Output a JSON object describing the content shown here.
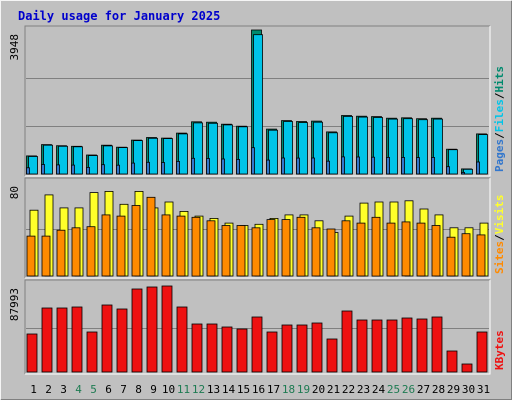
{
  "chart_data": {
    "title": "Daily usage for January 2025",
    "type": "bar",
    "x": [
      "1",
      "2",
      "3",
      "4",
      "5",
      "6",
      "7",
      "8",
      "9",
      "10",
      "11",
      "12",
      "13",
      "14",
      "15",
      "16",
      "17",
      "18",
      "19",
      "20",
      "21",
      "22",
      "23",
      "24",
      "25",
      "26",
      "27",
      "28",
      "29",
      "30",
      "31"
    ],
    "weekend_days": [
      "4",
      "5",
      "11",
      "12",
      "18",
      "19",
      "25",
      "26"
    ],
    "colors": {
      "background": "#c0c0c0",
      "frame": "#ececec",
      "title": "#0000cc",
      "pages": "#3377cc",
      "files": "#00c4e8",
      "hits": "#008a6e",
      "sites": "#ff8a00",
      "visits": "#ffff2a",
      "kbytes": "#ee1111",
      "weekend_label": "#1e7b52",
      "weekday_label": "#000000"
    },
    "panels": [
      {
        "id": "hits-panel",
        "ymax_label": "3948",
        "ylim": [
          0,
          3948
        ],
        "legend": [
          "Pages",
          "Files",
          "Hits"
        ],
        "series": [
          {
            "name": "Hits",
            "values": [
              495,
              805,
              775,
              760,
              520,
              790,
              735,
              930,
              1000,
              985,
              1120,
              1430,
              1420,
              1365,
              1310,
              3948,
              1230,
              1465,
              1440,
              1450,
              1155,
              1605,
              1585,
              1575,
              1530,
              1540,
              1515,
              1530,
              680,
              140,
              1100
            ]
          },
          {
            "name": "Files",
            "values": [
              480,
              790,
              760,
              745,
              505,
              770,
              725,
              915,
              980,
              970,
              1100,
              1400,
              1390,
              1345,
              1295,
              3820,
              1200,
              1440,
              1410,
              1420,
              1130,
              1580,
              1560,
              1550,
              1505,
              1515,
              1490,
              1505,
              665,
              130,
              1080
            ]
          },
          {
            "name": "Pages",
            "values": [
              170,
              260,
              250,
              245,
              180,
              255,
              240,
              300,
              320,
              315,
              345,
              430,
              425,
              410,
              400,
              720,
              380,
              440,
              435,
              440,
              350,
              470,
              465,
              460,
              455,
              455,
              450,
              455,
              200,
              45,
              330
            ]
          }
        ]
      },
      {
        "id": "visits-panel",
        "ymax_label": "80",
        "ylim": [
          0,
          80
        ],
        "legend": [
          "Sites",
          "Visits"
        ],
        "series": [
          {
            "name": "Visits",
            "values": [
              56,
              69,
              58,
              58,
              71,
              72,
              61,
              72,
              58,
              63,
              55,
              51,
              49,
              45,
              43,
              44,
              49,
              52,
              52,
              47,
              37,
              51,
              62,
              63,
              63,
              64,
              57,
              52,
              41,
              41,
              45
            ]
          },
          {
            "name": "Sites",
            "values": [
              34,
              34,
              39,
              41,
              42,
              52,
              51,
              60,
              67,
              52,
              51,
              50,
              47,
              43,
              43,
              41,
              48,
              48,
              50,
              41,
              40,
              47,
              45,
              50,
              45,
              46,
              45,
              43,
              33,
              36,
              35
            ]
          }
        ]
      },
      {
        "id": "kbytes-panel",
        "ymax_label": "87993",
        "ylim": [
          0,
          87993
        ],
        "legend": [
          "KBytes"
        ],
        "series": [
          {
            "name": "KBytes",
            "values": [
              38000,
              64000,
              64000,
              65000,
              40000,
              67000,
              63000,
              83000,
              85000,
              86000,
              65000,
              48000,
              48000,
              45000,
              43000,
              55000,
              40000,
              47000,
              47000,
              49000,
              33000,
              61000,
              52000,
              52000,
              52000,
              54000,
              53000,
              55000,
              21000,
              8000,
              40000
            ]
          }
        ]
      }
    ]
  }
}
